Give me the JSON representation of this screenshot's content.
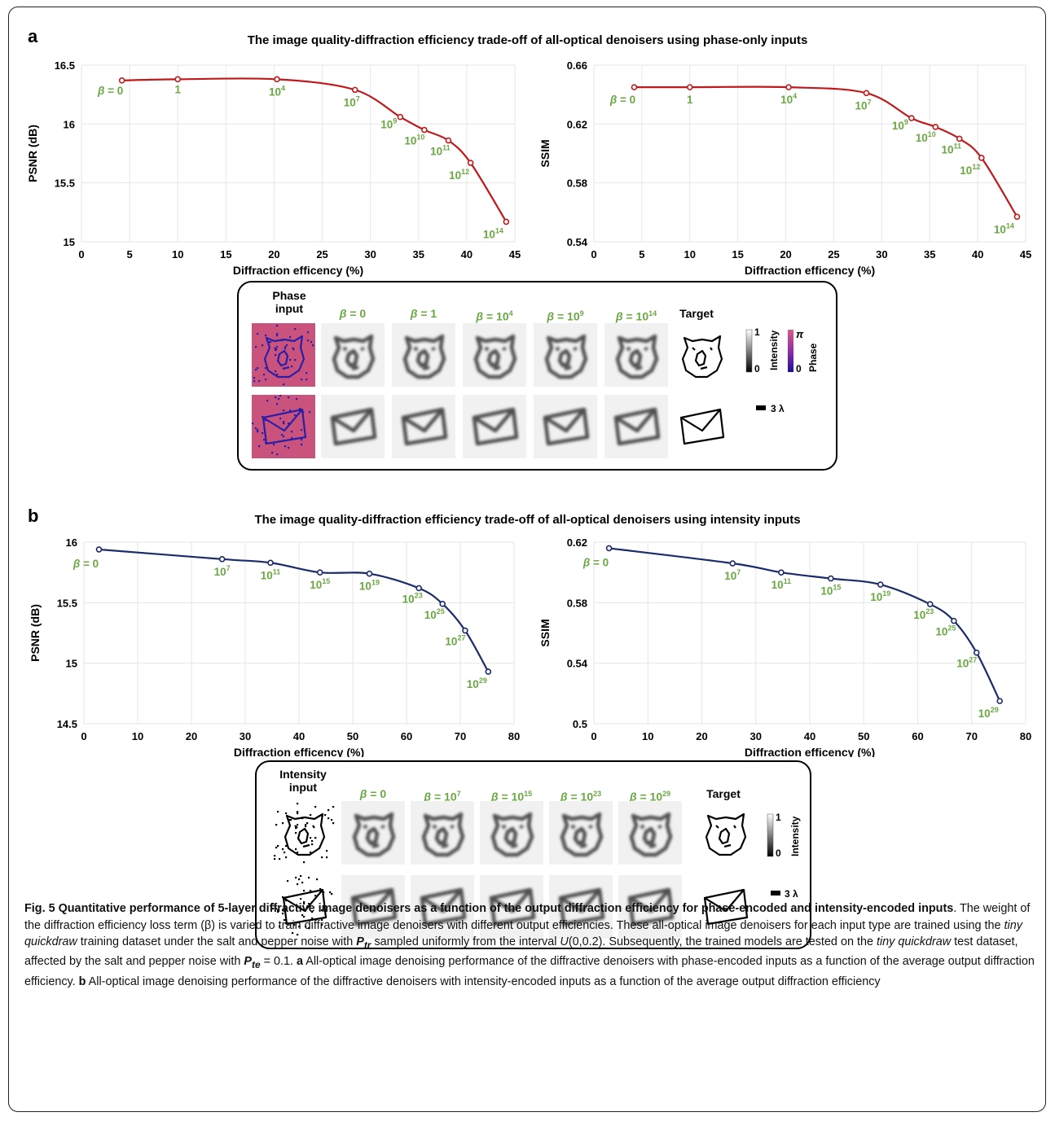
{
  "panel_a": {
    "letter": "a",
    "title": "The image quality-diffraction efficiency trade-off of all-optical denoisers using phase-only inputs"
  },
  "panel_b": {
    "letter": "b",
    "title": "The image quality-diffraction efficiency trade-off of all-optical denoisers using intensity inputs"
  },
  "chart_data": [
    {
      "id": "a-psnr",
      "type": "line",
      "xlabel": "Diffraction efficency (%)",
      "ylabel": "PSNR (dB)",
      "xlim": [
        0,
        45
      ],
      "ylim": [
        15,
        16.5
      ],
      "xticks": [
        0,
        5,
        10,
        15,
        20,
        25,
        30,
        35,
        40,
        45
      ],
      "xtick_labels": [
        "0",
        "5",
        "10",
        "15",
        "20",
        "25",
        "30",
        "35",
        "40",
        "45"
      ],
      "yticks": [
        15,
        15.5,
        16,
        16.5
      ],
      "ytick_labels": [
        "15",
        "15.5",
        "16",
        "16.5"
      ],
      "color": "#c0191b",
      "label_color": "#6aa842",
      "grid": true,
      "points": [
        {
          "x": 4.2,
          "y": 16.37,
          "label": "β = 0"
        },
        {
          "x": 10,
          "y": 16.38,
          "label": "1"
        },
        {
          "x": 20.3,
          "y": 16.38,
          "label": "10⁴"
        },
        {
          "x": 28.4,
          "y": 16.29,
          "label": "10⁷"
        },
        {
          "x": 33.1,
          "y": 16.06,
          "label": "10⁹"
        },
        {
          "x": 35.6,
          "y": 15.95,
          "label": "10¹⁰"
        },
        {
          "x": 38.1,
          "y": 15.86,
          "label": "10¹¹"
        },
        {
          "x": 40.4,
          "y": 15.67,
          "label": "10¹²"
        },
        {
          "x": 44.1,
          "y": 15.17,
          "label": "10¹⁴"
        }
      ]
    },
    {
      "id": "a-ssim",
      "type": "line",
      "xlabel": "Diffraction efficency (%)",
      "ylabel": "SSIM",
      "xlim": [
        0,
        45
      ],
      "ylim": [
        0.54,
        0.66
      ],
      "xticks": [
        0,
        5,
        10,
        15,
        20,
        25,
        30,
        35,
        40,
        45
      ],
      "xtick_labels": [
        "0",
        "5",
        "10",
        "15",
        "20",
        "25",
        "30",
        "35",
        "40",
        "45"
      ],
      "yticks": [
        0.54,
        0.58,
        0.62,
        0.66
      ],
      "ytick_labels": [
        "0.54",
        "0.58",
        "0.62",
        "0.66"
      ],
      "color": "#c0191b",
      "label_color": "#6aa842",
      "grid": true,
      "points": [
        {
          "x": 4.2,
          "y": 0.645,
          "label": "β = 0"
        },
        {
          "x": 10,
          "y": 0.645,
          "label": "1"
        },
        {
          "x": 20.3,
          "y": 0.645,
          "label": "10⁴"
        },
        {
          "x": 28.4,
          "y": 0.641,
          "label": "10⁷"
        },
        {
          "x": 33.1,
          "y": 0.624,
          "label": "10⁹"
        },
        {
          "x": 35.6,
          "y": 0.618,
          "label": "10¹⁰"
        },
        {
          "x": 38.1,
          "y": 0.61,
          "label": "10¹¹"
        },
        {
          "x": 40.4,
          "y": 0.597,
          "label": "10¹²"
        },
        {
          "x": 44.1,
          "y": 0.557,
          "label": "10¹⁴"
        }
      ]
    },
    {
      "id": "b-psnr",
      "type": "line",
      "xlabel": "Diffraction efficency (%)",
      "ylabel": "PSNR (dB)",
      "xlim": [
        0,
        80
      ],
      "ylim": [
        14.5,
        16
      ],
      "xticks": [
        0,
        10,
        20,
        30,
        40,
        50,
        60,
        70,
        80
      ],
      "xtick_labels": [
        "0",
        "10",
        "20",
        "30",
        "40",
        "50",
        "60",
        "70",
        "80"
      ],
      "yticks": [
        14.5,
        15,
        15.5,
        16
      ],
      "ytick_labels": [
        "14.5",
        "15",
        "15.5",
        "16"
      ],
      "color": "#1a2a6b",
      "label_color": "#6aa842",
      "grid": true,
      "points": [
        {
          "x": 2.8,
          "y": 15.94,
          "label": "β = 0"
        },
        {
          "x": 25.7,
          "y": 15.86,
          "label": "10⁷"
        },
        {
          "x": 34.7,
          "y": 15.83,
          "label": "10¹¹"
        },
        {
          "x": 43.9,
          "y": 15.75,
          "label": "10¹⁵"
        },
        {
          "x": 53.1,
          "y": 15.74,
          "label": "10¹⁹"
        },
        {
          "x": 62.3,
          "y": 15.62,
          "label": "10²³"
        },
        {
          "x": 66.7,
          "y": 15.49,
          "label": "10²⁵"
        },
        {
          "x": 70.9,
          "y": 15.27,
          "label": "10²⁷"
        },
        {
          "x": 75.2,
          "y": 14.93,
          "label": "10²⁹"
        }
      ]
    },
    {
      "id": "b-ssim",
      "type": "line",
      "xlabel": "Diffraction efficency (%)",
      "ylabel": "SSIM",
      "xlim": [
        0,
        80
      ],
      "ylim": [
        0.5,
        0.62
      ],
      "xticks": [
        0,
        10,
        20,
        30,
        40,
        50,
        60,
        70,
        80
      ],
      "xtick_labels": [
        "0",
        "10",
        "20",
        "30",
        "40",
        "50",
        "60",
        "70",
        "80"
      ],
      "yticks": [
        0.5,
        0.54,
        0.58,
        0.62
      ],
      "ytick_labels": [
        "0.5",
        "0.54",
        "0.58",
        "0.62"
      ],
      "color": "#1a2a6b",
      "label_color": "#6aa842",
      "grid": true,
      "points": [
        {
          "x": 2.8,
          "y": 0.616,
          "label": "β = 0"
        },
        {
          "x": 25.7,
          "y": 0.606,
          "label": "10⁷"
        },
        {
          "x": 34.7,
          "y": 0.6,
          "label": "10¹¹"
        },
        {
          "x": 43.9,
          "y": 0.596,
          "label": "10¹⁵"
        },
        {
          "x": 53.1,
          "y": 0.592,
          "label": "10¹⁹"
        },
        {
          "x": 62.3,
          "y": 0.579,
          "label": "10²³"
        },
        {
          "x": 66.7,
          "y": 0.568,
          "label": "10²⁵"
        },
        {
          "x": 70.9,
          "y": 0.547,
          "label": "10²⁷"
        },
        {
          "x": 75.2,
          "y": 0.515,
          "label": "10²⁹"
        }
      ]
    }
  ],
  "gallery_a": {
    "input_header_line1": "Phase",
    "input_header_line2": "input",
    "beta_headers": [
      "β = 0",
      "β = 1",
      "β = 10⁴",
      "β = 10⁹",
      "β = 10¹⁴"
    ],
    "target_header": "Target",
    "intensity_bar": {
      "max": "1",
      "min": "0",
      "label": "Intensity"
    },
    "phase_bar": {
      "max": "π",
      "min": "0",
      "label": "Phase"
    },
    "scale_bar": "3 λ",
    "colors": {
      "frame": "#b01c1c",
      "phase_bg": "#c9537d",
      "phase_stroke": "#2a1ea8"
    }
  },
  "gallery_b": {
    "input_header_line1": "Intensity",
    "input_header_line2": "input",
    "beta_headers": [
      "β = 0",
      "β = 10⁷",
      "β = 10¹⁵",
      "β = 10²³",
      "β = 10²⁹"
    ],
    "target_header": "Target",
    "intensity_bar": {
      "max": "1",
      "min": "0",
      "label": "Intensity"
    },
    "scale_bar": "3 λ",
    "colors": {
      "frame": "#1a2a6b"
    }
  },
  "caption": {
    "title": "Fig. 5 Quantitative performance of 5-layer diffractive image denoisers as a function of the output diffraction efficiency for phase-encoded and intensity-encoded inputs",
    "s1": ". The weight of the diffraction efficiency loss term (β) is varied to train diffractive image denoisers with different output efficiencies. These all-optical image denoisers for each input type are trained using the ",
    "dataset": "tiny quickdraw",
    "s2": " training dataset under the salt and pepper noise with ",
    "ptr": "P",
    "ptr_sub": "tr",
    "s3": " sampled uniformly from the interval ",
    "interval": "U",
    "s4": "(0,0.2). Subsequently, the trained models are tested on the ",
    "dataset2": "tiny quickdraw",
    "s5": " test dataset, affected by the salt and pepper noise with ",
    "pte": "P",
    "pte_sub": "te",
    "s6": " = 0.1. ",
    "a_label": "a",
    "a_text": " All-optical image denoising performance of the diffractive denoisers with phase-encoded inputs as a function of the average output diffraction efficiency. ",
    "b_label": "b",
    "b_text": " All-optical image denoising performance of the diffractive denoisers with intensity-encoded inputs as a function of the average output diffraction efficiency"
  }
}
